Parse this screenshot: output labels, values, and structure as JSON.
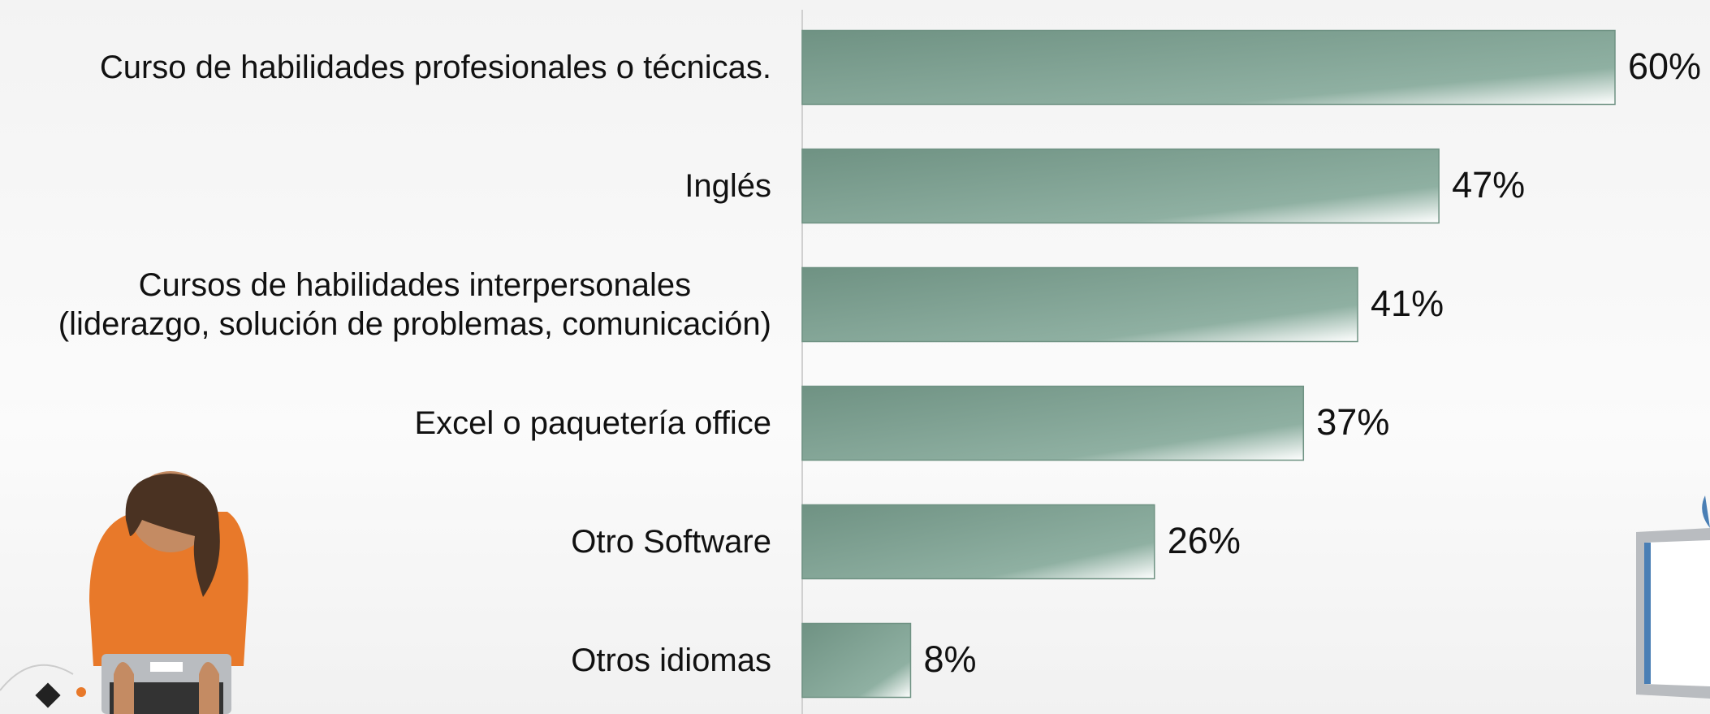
{
  "chart_data": {
    "type": "bar",
    "orientation": "horizontal",
    "color": "#6f9283",
    "categories": [
      "Curso de habilidades profesionales o técnicas.",
      "Inglés",
      "Cursos de habilidades interpersonales\n(liderazgo, solución de problemas, comunicación)",
      "Excel o paquetería office",
      "Otro Software",
      "Otros idiomas"
    ],
    "values": [
      60,
      47,
      41,
      37,
      26,
      8
    ],
    "value_labels": [
      "60%",
      "47%",
      "41%",
      "37%",
      "26%",
      "8%"
    ]
  }
}
